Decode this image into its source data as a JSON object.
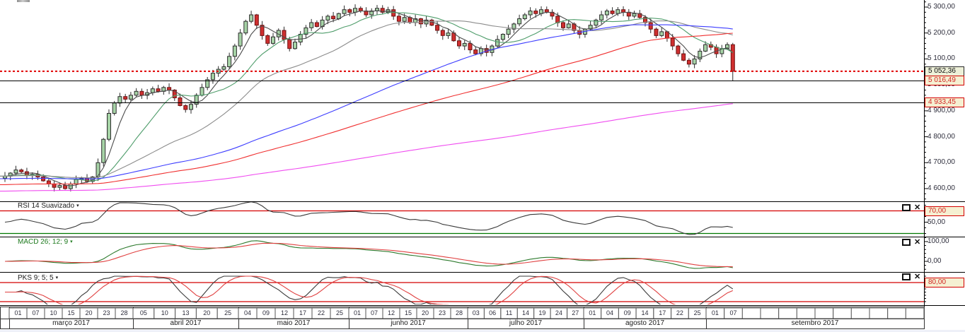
{
  "colors": {
    "up_fill": "#a6d3a6",
    "up_stroke": "#2d2d2d",
    "down_fill": "#cf2f2f",
    "down_stroke": "#6e1212",
    "wick": "#2d2d2d",
    "last_price_line": "#e00000",
    "level_line": "#000000",
    "axis_text": "#2e2e3c",
    "panel_border": "#000000"
  },
  "main_chart": {
    "y_axis_labels": [
      {
        "text": "5 300,00",
        "value": 5300
      },
      {
        "text": "5 200,00",
        "value": 5200
      },
      {
        "text": "5 100,00",
        "value": 5100
      },
      {
        "text": "5 000,00",
        "value": 5000
      },
      {
        "text": "4 900,00",
        "value": 4900
      },
      {
        "text": "4 800,00",
        "value": 4800
      },
      {
        "text": "4 700,00",
        "value": 4700
      },
      {
        "text": "4 600,00",
        "value": 4600
      }
    ],
    "price_markers": [
      {
        "text": "5 052,36",
        "value": 5052.36,
        "kind": "last_price"
      },
      {
        "text": "5 016,49",
        "value": 5016.49,
        "kind": "alert"
      },
      {
        "text": "4 933,45",
        "value": 4933.45,
        "kind": "alert"
      }
    ]
  },
  "panels": {
    "rsi": {
      "title": "RSI 14 Suavizado",
      "levels": [
        {
          "value": 70,
          "color": "#d40000"
        },
        {
          "value": 30,
          "color": "#007800"
        }
      ],
      "right_labels": [
        {
          "text": "70,00",
          "value": 70,
          "kind": "alert"
        },
        {
          "text": "50,00",
          "value": 50,
          "kind": "plain"
        }
      ]
    },
    "macd": {
      "title": "MACD 26; 12; 9",
      "right_labels": [
        {
          "text": "100,00",
          "value": 100,
          "kind": "plain"
        },
        {
          "text": "0,00",
          "value": 0,
          "kind": "plain"
        }
      ]
    },
    "pks": {
      "title": "PKS 9; 5; 5",
      "levels": [
        {
          "value": 80,
          "color": "#d40000"
        },
        {
          "value": 20,
          "color": "#d40000"
        }
      ],
      "right_labels": [
        {
          "text": "80,00",
          "value": 80,
          "kind": "alert"
        }
      ]
    }
  },
  "time_axis": {
    "months": [
      {
        "label": "março 2017",
        "days": [
          "01",
          "07",
          "10",
          "15",
          "20",
          "23",
          "28"
        ]
      },
      {
        "label": "abril 2017",
        "days": [
          "05",
          "10",
          "13",
          "20",
          "25"
        ]
      },
      {
        "label": "maio 2017",
        "days": [
          "04",
          "09",
          "12",
          "17",
          "22",
          "25"
        ]
      },
      {
        "label": "junho 2017",
        "days": [
          "01",
          "07",
          "12",
          "15",
          "20",
          "23",
          "28"
        ]
      },
      {
        "label": "julho 2017",
        "days": [
          "03",
          "06",
          "11",
          "14",
          "19",
          "24",
          "27"
        ]
      },
      {
        "label": "agosto 2017",
        "days": [
          "01",
          "04",
          "09",
          "14",
          "17",
          "22",
          "25"
        ]
      },
      {
        "label": "setembro 2017",
        "days": [
          "01",
          "07",
          "",
          "",
          "",
          "",
          "",
          "",
          "",
          "",
          "",
          ""
        ]
      }
    ]
  },
  "chart_data": {
    "type": "candlestick",
    "title": "",
    "y_range": [
      4560,
      5320
    ],
    "last_price": 5052.36,
    "price_levels": [
      5052.36,
      5016.49,
      4933.45
    ],
    "closes": [
      4648,
      4660,
      4672,
      4665,
      4650,
      4655,
      4645,
      4630,
      4618,
      4605,
      4612,
      4600,
      4618,
      4635,
      4640,
      4628,
      4645,
      4700,
      4790,
      4890,
      4930,
      4955,
      4945,
      4960,
      4975,
      4960,
      4970,
      4985,
      4975,
      4990,
      4980,
      4950,
      4920,
      4905,
      4925,
      4960,
      4990,
      5020,
      5045,
      5060,
      5070,
      5110,
      5150,
      5200,
      5245,
      5270,
      5230,
      5190,
      5160,
      5185,
      5210,
      5175,
      5140,
      5165,
      5195,
      5220,
      5240,
      5225,
      5250,
      5265,
      5255,
      5275,
      5290,
      5280,
      5295,
      5285,
      5270,
      5285,
      5295,
      5280,
      5290,
      5265,
      5245,
      5260,
      5240,
      5255,
      5235,
      5250,
      5230,
      5210,
      5190,
      5200,
      5170,
      5150,
      5160,
      5135,
      5120,
      5140,
      5125,
      5150,
      5175,
      5195,
      5215,
      5235,
      5255,
      5270,
      5285,
      5275,
      5290,
      5280,
      5265,
      5240,
      5220,
      5235,
      5210,
      5195,
      5215,
      5230,
      5250,
      5270,
      5285,
      5275,
      5290,
      5280,
      5265,
      5275,
      5260,
      5240,
      5215,
      5190,
      5205,
      5180,
      5150,
      5120,
      5095,
      5080,
      5100,
      5130,
      5155,
      5145,
      5120,
      5140,
      5155,
      5052.36
    ],
    "last_bar_ohlc": [
      5155,
      5162,
      5015,
      5052.36
    ],
    "moving_averages": [
      {
        "period": 5,
        "color": "#4d4d4d",
        "pad": null
      },
      {
        "period": 13,
        "color": "#4f9d6b",
        "pad": null
      },
      {
        "period": 30,
        "color": "#8c8c8c",
        "pad": null
      },
      {
        "period": 72,
        "color": "#3d3dff",
        "pad": 4638
      },
      {
        "period": 100,
        "color": "#f03030",
        "pad": 4615
      },
      {
        "period": 200,
        "color": "#f04df0",
        "pad": 4590
      }
    ],
    "indicators": {
      "rsi": {
        "period": 14,
        "smooth": 3,
        "color": "#3a3a3a"
      },
      "macd": {
        "fast": 12,
        "slow": 26,
        "signal": 9,
        "macd_color": "#2d7a2d",
        "signal_color": "#e04040"
      },
      "stoch": {
        "k": 9,
        "k_smooth": 5,
        "d": 5,
        "k_color": "#3a3a3a",
        "d_color": "#e04040"
      }
    }
  }
}
